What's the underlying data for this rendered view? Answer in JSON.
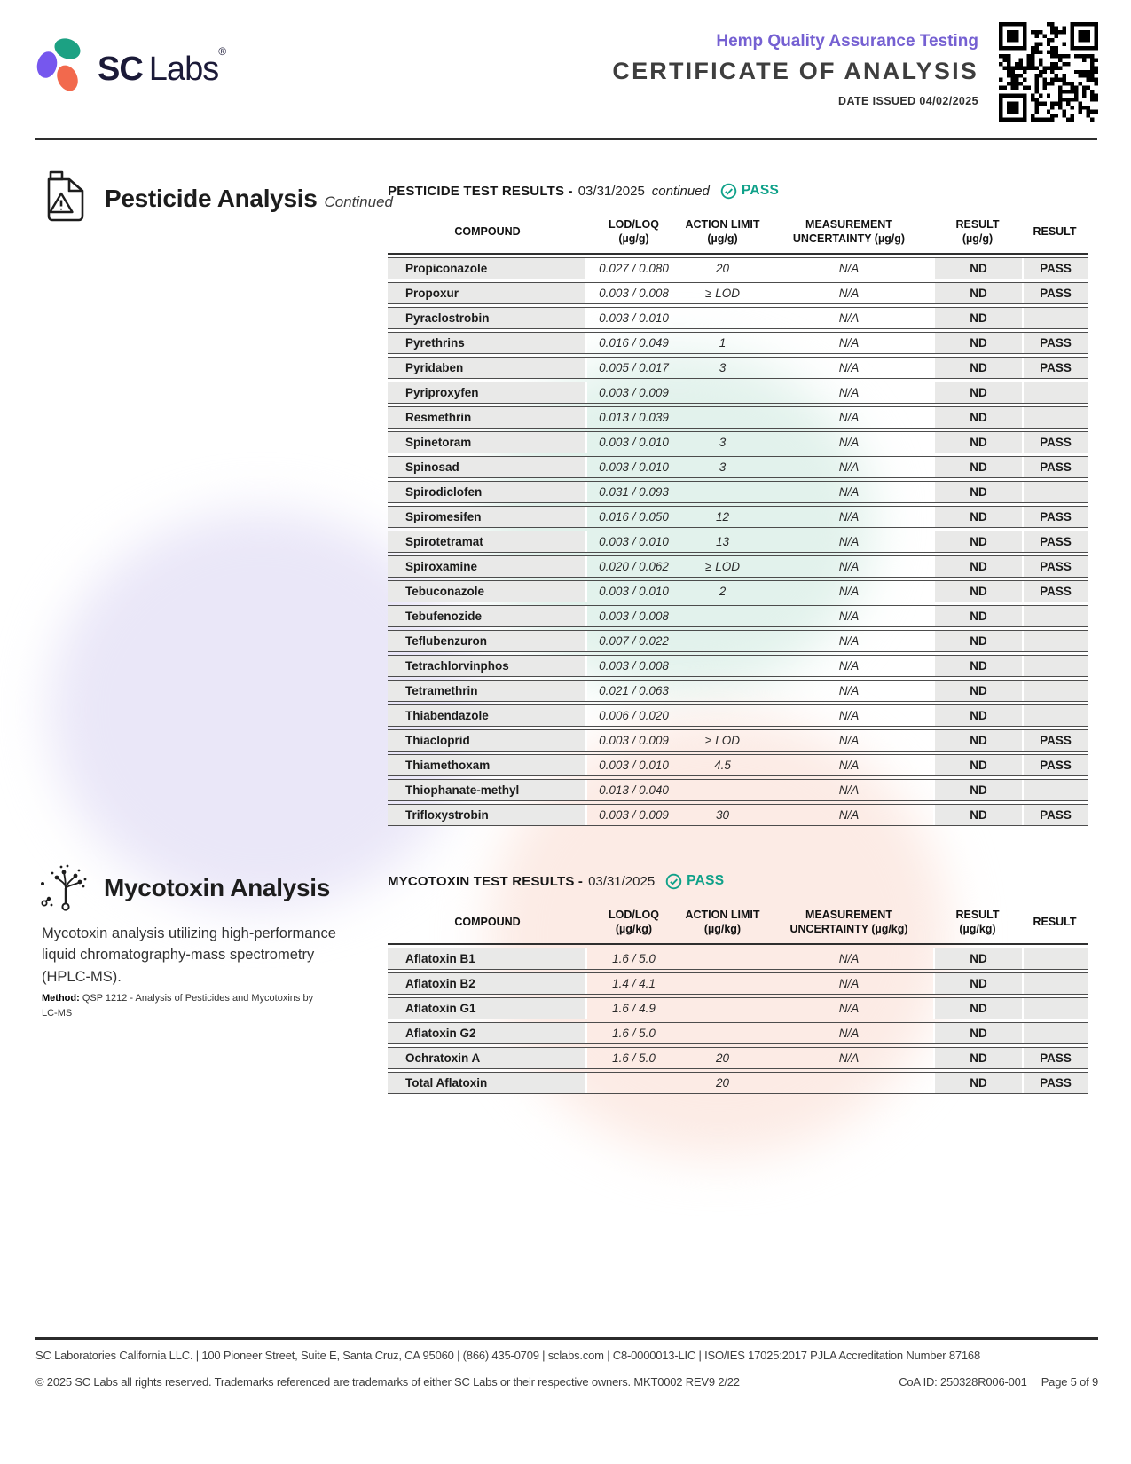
{
  "header": {
    "logo_text_bold": "SC",
    "logo_text_light": "Labs",
    "logo_registered": "®",
    "program_title": "Hemp Quality Assurance Testing",
    "doc_title": "CERTIFICATE OF ANALYSIS",
    "date_issued": "DATE ISSUED 04/02/2025"
  },
  "colors": {
    "accent_purple": "#7560d2",
    "accent_teal": "#0fa189",
    "row_gray": "#e9e9e8",
    "logo_teal": "#1ca183",
    "logo_purple": "#7657ee",
    "logo_coral": "#f2694d"
  },
  "pesticide": {
    "section_title": "Pesticide Analysis",
    "section_subtitle": "Continued",
    "table_title": "PESTICIDE TEST RESULTS -",
    "table_date": "03/31/2025",
    "table_note": "continued",
    "status": "PASS",
    "columns": [
      {
        "label": "COMPOUND",
        "sub": ""
      },
      {
        "label": "LOD/LOQ",
        "sub": "(µg/g)"
      },
      {
        "label": "ACTION LIMIT",
        "sub": "(µg/g)"
      },
      {
        "label": "MEASUREMENT",
        "sub": "UNCERTAINTY (µg/g)"
      },
      {
        "label": "RESULT",
        "sub": "(µg/g)"
      },
      {
        "label": "RESULT",
        "sub": ""
      }
    ],
    "rows": [
      {
        "compound": "Propiconazole",
        "lod": "0.027 / 0.080",
        "action": "20",
        "unc": "N/A",
        "result": "ND",
        "status": "PASS"
      },
      {
        "compound": "Propoxur",
        "lod": "0.003 / 0.008",
        "action": "≥ LOD",
        "unc": "N/A",
        "result": "ND",
        "status": "PASS"
      },
      {
        "compound": "Pyraclostrobin",
        "lod": "0.003 / 0.010",
        "action": "",
        "unc": "N/A",
        "result": "ND",
        "status": ""
      },
      {
        "compound": "Pyrethrins",
        "lod": "0.016 / 0.049",
        "action": "1",
        "unc": "N/A",
        "result": "ND",
        "status": "PASS"
      },
      {
        "compound": "Pyridaben",
        "lod": "0.005 / 0.017",
        "action": "3",
        "unc": "N/A",
        "result": "ND",
        "status": "PASS"
      },
      {
        "compound": "Pyriproxyfen",
        "lod": "0.003 / 0.009",
        "action": "",
        "unc": "N/A",
        "result": "ND",
        "status": ""
      },
      {
        "compound": "Resmethrin",
        "lod": "0.013 / 0.039",
        "action": "",
        "unc": "N/A",
        "result": "ND",
        "status": ""
      },
      {
        "compound": "Spinetoram",
        "lod": "0.003 / 0.010",
        "action": "3",
        "unc": "N/A",
        "result": "ND",
        "status": "PASS"
      },
      {
        "compound": "Spinosad",
        "lod": "0.003 / 0.010",
        "action": "3",
        "unc": "N/A",
        "result": "ND",
        "status": "PASS"
      },
      {
        "compound": "Spirodiclofen",
        "lod": "0.031 / 0.093",
        "action": "",
        "unc": "N/A",
        "result": "ND",
        "status": ""
      },
      {
        "compound": "Spiromesifen",
        "lod": "0.016 / 0.050",
        "action": "12",
        "unc": "N/A",
        "result": "ND",
        "status": "PASS"
      },
      {
        "compound": "Spirotetramat",
        "lod": "0.003 / 0.010",
        "action": "13",
        "unc": "N/A",
        "result": "ND",
        "status": "PASS"
      },
      {
        "compound": "Spiroxamine",
        "lod": "0.020 / 0.062",
        "action": "≥ LOD",
        "unc": "N/A",
        "result": "ND",
        "status": "PASS"
      },
      {
        "compound": "Tebuconazole",
        "lod": "0.003 / 0.010",
        "action": "2",
        "unc": "N/A",
        "result": "ND",
        "status": "PASS"
      },
      {
        "compound": "Tebufenozide",
        "lod": "0.003 / 0.008",
        "action": "",
        "unc": "N/A",
        "result": "ND",
        "status": ""
      },
      {
        "compound": "Teflubenzuron",
        "lod": "0.007 / 0.022",
        "action": "",
        "unc": "N/A",
        "result": "ND",
        "status": ""
      },
      {
        "compound": "Tetrachlorvinphos",
        "lod": "0.003 / 0.008",
        "action": "",
        "unc": "N/A",
        "result": "ND",
        "status": ""
      },
      {
        "compound": "Tetramethrin",
        "lod": "0.021 / 0.063",
        "action": "",
        "unc": "N/A",
        "result": "ND",
        "status": ""
      },
      {
        "compound": "Thiabendazole",
        "lod": "0.006 / 0.020",
        "action": "",
        "unc": "N/A",
        "result": "ND",
        "status": ""
      },
      {
        "compound": "Thiacloprid",
        "lod": "0.003 / 0.009",
        "action": "≥ LOD",
        "unc": "N/A",
        "result": "ND",
        "status": "PASS"
      },
      {
        "compound": "Thiamethoxam",
        "lod": "0.003 / 0.010",
        "action": "4.5",
        "unc": "N/A",
        "result": "ND",
        "status": "PASS"
      },
      {
        "compound": "Thiophanate-methyl",
        "lod": "0.013 / 0.040",
        "action": "",
        "unc": "N/A",
        "result": "ND",
        "status": ""
      },
      {
        "compound": "Trifloxystrobin",
        "lod": "0.003 / 0.009",
        "action": "30",
        "unc": "N/A",
        "result": "ND",
        "status": "PASS"
      }
    ]
  },
  "mycotoxin": {
    "section_title": "Mycotoxin Analysis",
    "description": "Mycotoxin analysis utilizing high-performance liquid chromatography-mass spectrometry (HPLC-MS).",
    "method_label": "Method:",
    "method_text": " QSP 1212 - Analysis of Pesticides and Mycotoxins by LC-MS",
    "table_title": "MYCOTOXIN TEST RESULTS -",
    "table_date": "03/31/2025",
    "status": "PASS",
    "columns": [
      {
        "label": "COMPOUND",
        "sub": ""
      },
      {
        "label": "LOD/LOQ",
        "sub": "(µg/kg)"
      },
      {
        "label": "ACTION LIMIT",
        "sub": "(µg/kg)"
      },
      {
        "label": "MEASUREMENT",
        "sub": "UNCERTAINTY (µg/kg)"
      },
      {
        "label": "RESULT",
        "sub": "(µg/kg)"
      },
      {
        "label": "RESULT",
        "sub": ""
      }
    ],
    "rows": [
      {
        "compound": "Aflatoxin B1",
        "lod": "1.6 / 5.0",
        "action": "",
        "unc": "N/A",
        "result": "ND",
        "status": ""
      },
      {
        "compound": "Aflatoxin B2",
        "lod": "1.4 / 4.1",
        "action": "",
        "unc": "N/A",
        "result": "ND",
        "status": ""
      },
      {
        "compound": "Aflatoxin G1",
        "lod": "1.6 / 4.9",
        "action": "",
        "unc": "N/A",
        "result": "ND",
        "status": ""
      },
      {
        "compound": "Aflatoxin G2",
        "lod": "1.6 / 5.0",
        "action": "",
        "unc": "N/A",
        "result": "ND",
        "status": ""
      },
      {
        "compound": "Ochratoxin A",
        "lod": "1.6 / 5.0",
        "action": "20",
        "unc": "N/A",
        "result": "ND",
        "status": "PASS"
      },
      {
        "compound": "Total Aflatoxin",
        "lod": "",
        "action": "20",
        "unc": "",
        "result": "ND",
        "status": "PASS"
      }
    ]
  },
  "footer": {
    "line1": "SC Laboratories California LLC. | 100 Pioneer Street, Suite E, Santa Cruz, CA 95060 | (866) 435-0709 | sclabs.com | C8-0000013-LIC | ISO/IES 17025:2017 PJLA Accreditation Number 87168",
    "line2": "© 2025 SC Labs all rights reserved. Trademarks referenced are trademarks of either SC Labs or their respective owners. MKT0002 REV9 2/22",
    "coa_id": "CoA ID: 250328R006-001",
    "page": "Page 5 of 9"
  }
}
